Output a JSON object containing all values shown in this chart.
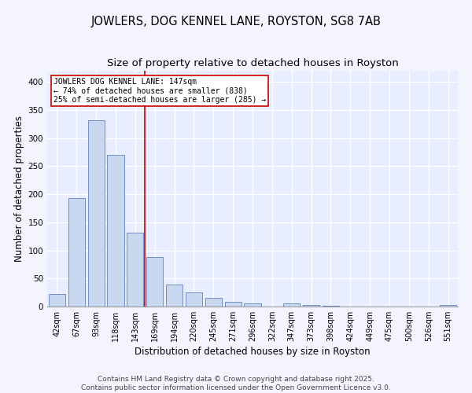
{
  "title": "JOWLERS, DOG KENNEL LANE, ROYSTON, SG8 7AB",
  "subtitle": "Size of property relative to detached houses in Royston",
  "xlabel": "Distribution of detached houses by size in Royston",
  "ylabel": "Number of detached properties",
  "footer_line1": "Contains HM Land Registry data © Crown copyright and database right 2025.",
  "footer_line2": "Contains public sector information licensed under the Open Government Licence v3.0.",
  "categories": [
    "42sqm",
    "67sqm",
    "93sqm",
    "118sqm",
    "143sqm",
    "169sqm",
    "194sqm",
    "220sqm",
    "245sqm",
    "271sqm",
    "296sqm",
    "322sqm",
    "347sqm",
    "373sqm",
    "398sqm",
    "424sqm",
    "449sqm",
    "475sqm",
    "500sqm",
    "526sqm",
    "551sqm"
  ],
  "values": [
    22,
    193,
    332,
    270,
    131,
    88,
    39,
    25,
    15,
    8,
    5,
    0,
    5,
    3,
    2,
    0,
    0,
    0,
    0,
    0,
    3
  ],
  "bar_color": "#c8d8f0",
  "bar_edge_color": "#7090c0",
  "bar_linewidth": 0.7,
  "annotation_text": "JOWLERS DOG KENNEL LANE: 147sqm\n← 74% of detached houses are smaller (838)\n25% of semi-detached houses are larger (285) →",
  "vline_x": 4.5,
  "vline_color": "#cc0000",
  "vline_linewidth": 1.2,
  "annotation_box_color": "#cc0000",
  "ylim": [
    0,
    420
  ],
  "yticks": [
    0,
    50,
    100,
    150,
    200,
    250,
    300,
    350,
    400
  ],
  "background_color": "#e8eeff",
  "grid_color": "#ffffff",
  "fig_background": "#f4f4ff",
  "title_fontsize": 10.5,
  "subtitle_fontsize": 9.5,
  "axis_label_fontsize": 8.5,
  "tick_fontsize": 7,
  "annotation_fontsize": 7,
  "footer_fontsize": 6.5
}
